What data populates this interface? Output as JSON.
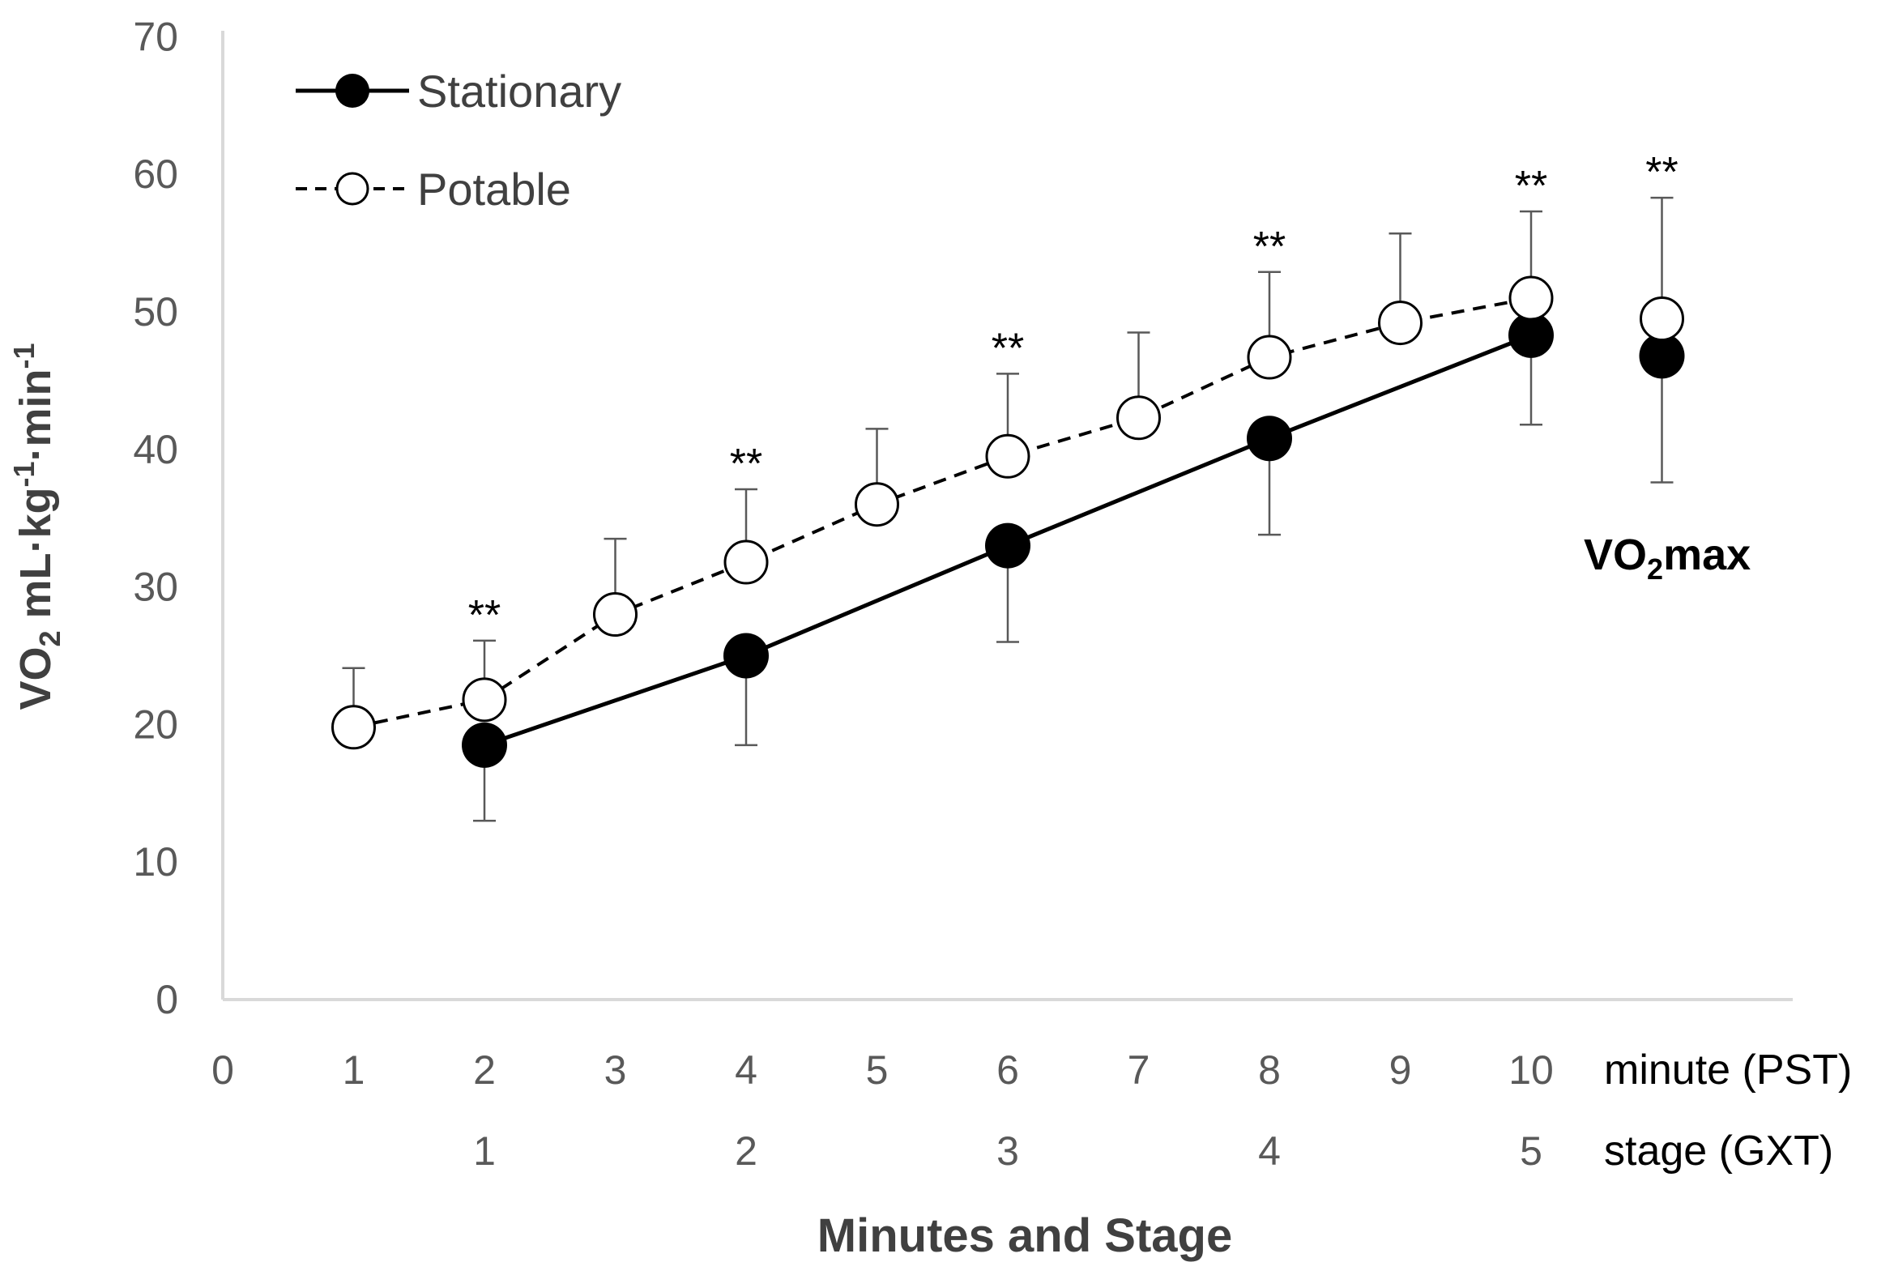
{
  "chart_data": {
    "type": "line",
    "xlabel": "Minutes and Stage",
    "ylabel": {
      "main": "VO",
      "sub": "2",
      "rest1": " mL·kg",
      "sup1": "-1",
      "rest2": "·min",
      "sup2": "-1"
    },
    "ylim": [
      0,
      70
    ],
    "yticks": [
      "0",
      "10",
      "20",
      "30",
      "40",
      "50",
      "60",
      "70"
    ],
    "xlim": [
      0,
      12
    ],
    "xticks_minute": [
      "0",
      "1",
      "2",
      "3",
      "4",
      "5",
      "6",
      "7",
      "8",
      "9",
      "10"
    ],
    "minute_row_label": "minute (PST)",
    "xticks_stage": [
      {
        "x": 2,
        "label": "1"
      },
      {
        "x": 4,
        "label": "2"
      },
      {
        "x": 6,
        "label": "3"
      },
      {
        "x": 8,
        "label": "4"
      },
      {
        "x": 10,
        "label": "5"
      }
    ],
    "stage_row_label": "stage (GXT)",
    "series": [
      {
        "name": "Stationary",
        "style": "solid",
        "marker": "filled",
        "x": [
          2,
          4,
          6,
          8,
          10
        ],
        "values": [
          18.5,
          25.0,
          33.0,
          40.8,
          48.3
        ],
        "error_lower": [
          5.5,
          6.5,
          7.0,
          7.0,
          6.5
        ]
      },
      {
        "name": "Potable",
        "style": "dashed",
        "marker": "open",
        "x": [
          1,
          2,
          3,
          4,
          5,
          6,
          7,
          8,
          9,
          10
        ],
        "values": [
          19.8,
          21.8,
          28.0,
          31.8,
          36.0,
          39.5,
          42.3,
          46.7,
          49.2,
          51.0
        ],
        "error_upper": [
          4.3,
          4.3,
          5.5,
          5.3,
          5.5,
          6.0,
          6.2,
          6.2,
          6.5,
          6.3
        ]
      }
    ],
    "vo2max": {
      "x": 11,
      "label": {
        "main": "VO",
        "sub": "2",
        "rest": "max"
      },
      "stationary": {
        "value": 46.8,
        "error_lower": 9.2
      },
      "potable": {
        "value": 49.5,
        "error_upper": 8.8
      }
    },
    "significance": [
      {
        "x": 2,
        "y": 26.1,
        "label": "**"
      },
      {
        "x": 4,
        "y": 37.1,
        "label": "**"
      },
      {
        "x": 6,
        "y": 45.5,
        "label": "**"
      },
      {
        "x": 8,
        "y": 52.9,
        "label": "**"
      },
      {
        "x": 10,
        "y": 57.3,
        "label": "**"
      },
      {
        "x": 11,
        "y": 58.3,
        "label": "**"
      }
    ],
    "legend": {
      "position": "top-left",
      "entries": [
        "Stationary",
        "Potable"
      ]
    },
    "grid": false,
    "colors": {
      "stationary": "#000000",
      "potable_fill": "#ffffff",
      "axis": "#d9d9d9",
      "text": "#595959"
    }
  }
}
